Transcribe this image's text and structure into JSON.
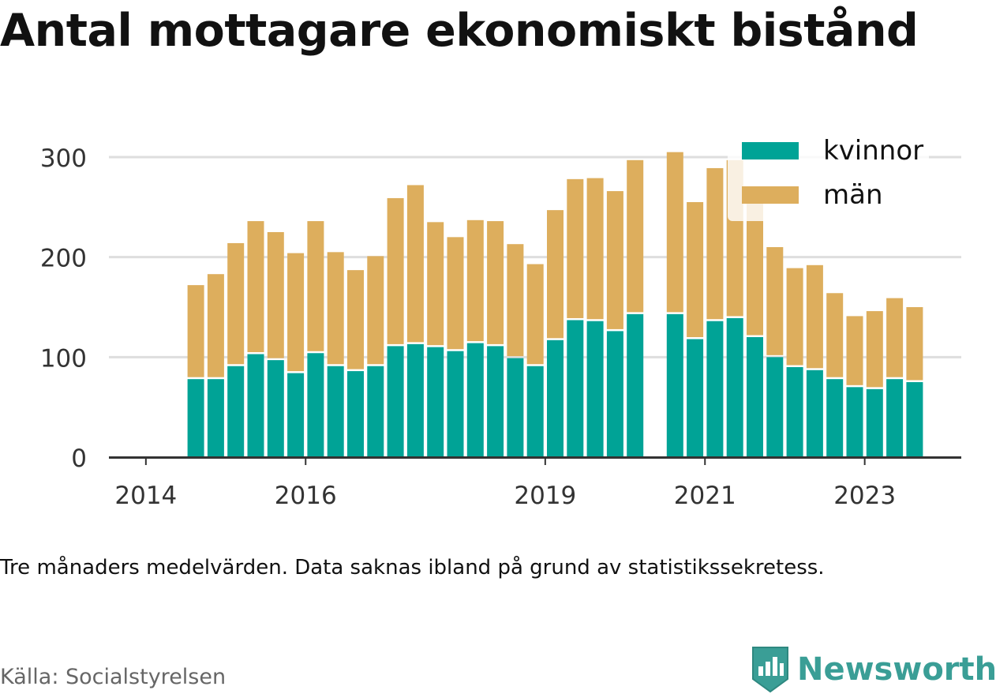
{
  "title": "Antal mottagare ekonomiskt bistånd",
  "note": "Tre månaders medelvärden. Data saknas ibland på grund av statistikssekretess.",
  "source": "Källa: Socialstyrelsen",
  "brand": "Newsworthy",
  "colors": {
    "kvinnor": "#00a396",
    "man": "#ddae5d",
    "brand": "#3a9e96"
  },
  "chart_data": {
    "type": "bar",
    "stacked": true,
    "title": "Antal mottagare ekonomiskt bistånd",
    "ylim": [
      0,
      320
    ],
    "yticks": [
      0,
      100,
      200,
      300
    ],
    "xticks": [
      "2014",
      "2016",
      "2019",
      "2021",
      "2023"
    ],
    "grid": true,
    "legend_position": "top-right",
    "categories": [
      "2014 Q1",
      "2014 Q2",
      "2014 Q3",
      "2014 Q4",
      "2015 Q1",
      "2015 Q2",
      "2015 Q3",
      "2015 Q4",
      "2016 Q1",
      "2016 Q2",
      "2016 Q3",
      "2016 Q4",
      "2017 Q1",
      "2017 Q2",
      "2017 Q3",
      "2017 Q4",
      "2018 Q1",
      "2018 Q2",
      "2018 Q3",
      "2018 Q4",
      "2019 Q1",
      "2019 Q2",
      "2019 Q3",
      "2019 Q4",
      "2020 Q1",
      "2020 Q2",
      "2020 Q3",
      "2020 Q4",
      "2021 Q1",
      "2021 Q2",
      "2021 Q3",
      "2021 Q4",
      "2022 Q1",
      "2022 Q2",
      "2022 Q3",
      "2022 Q4",
      "2023 Q1",
      "2023 Q2",
      "2023 Q3",
      "2023 Q4"
    ],
    "series": [
      {
        "name": "kvinnor",
        "values": [
          null,
          null,
          78,
          78,
          91,
          103,
          97,
          84,
          104,
          91,
          86,
          91,
          111,
          113,
          110,
          106,
          114,
          111,
          99,
          91,
          117,
          137,
          136,
          126,
          143,
          null,
          143,
          118,
          136,
          139,
          120,
          100,
          90,
          87,
          78,
          70,
          68,
          78,
          75,
          null
        ]
      },
      {
        "name": "män",
        "values": [
          null,
          null,
          94,
          105,
          123,
          133,
          128,
          120,
          132,
          114,
          101,
          110,
          148,
          159,
          125,
          114,
          123,
          125,
          114,
          102,
          130,
          141,
          143,
          140,
          154,
          null,
          162,
          137,
          153,
          158,
          145,
          110,
          99,
          105,
          86,
          71,
          78,
          81,
          75,
          null
        ]
      }
    ]
  }
}
